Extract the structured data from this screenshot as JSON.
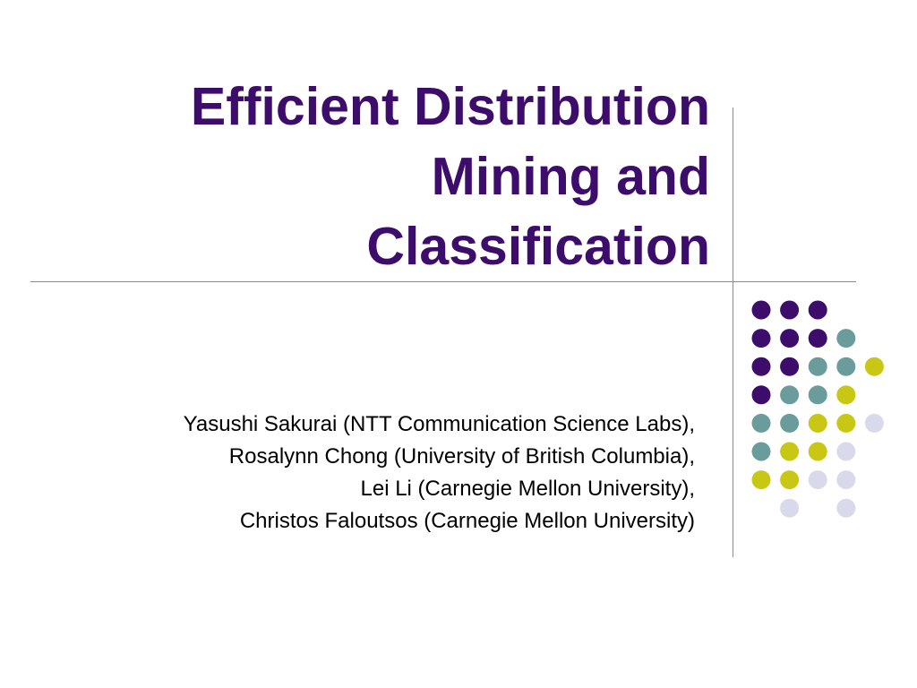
{
  "slide": {
    "title_lines": [
      "Efficient Distribution",
      "Mining and",
      "Classification"
    ],
    "authors": [
      "Yasushi Sakurai (NTT Communication Science Labs),",
      "Rosalynn Chong (University of British Columbia),",
      "Lei Li (Carnegie Mellon University),",
      "Christos Faloutsos (Carnegie Mellon University)"
    ]
  },
  "theme": {
    "title_color": "#3d0d6b",
    "dot_colors": {
      "purple": "#3d0d6b",
      "teal": "#6b9c9c",
      "olive": "#c8c814",
      "lavender": "#d9d9ec"
    }
  },
  "decoration": {
    "dot_grid": [
      [
        "purple",
        "purple",
        "purple",
        null,
        null
      ],
      [
        "purple",
        "purple",
        "purple",
        "teal",
        null
      ],
      [
        "purple",
        "purple",
        "teal",
        "teal",
        "olive"
      ],
      [
        "purple",
        "teal",
        "teal",
        "olive",
        null
      ],
      [
        "teal",
        "teal",
        "olive",
        "olive",
        "lavender"
      ],
      [
        "teal",
        "olive",
        "olive",
        "lavender",
        null
      ],
      [
        "olive",
        "olive",
        "lavender",
        "lavender",
        null
      ],
      [
        null,
        "lavender",
        null,
        "lavender",
        null
      ]
    ]
  }
}
